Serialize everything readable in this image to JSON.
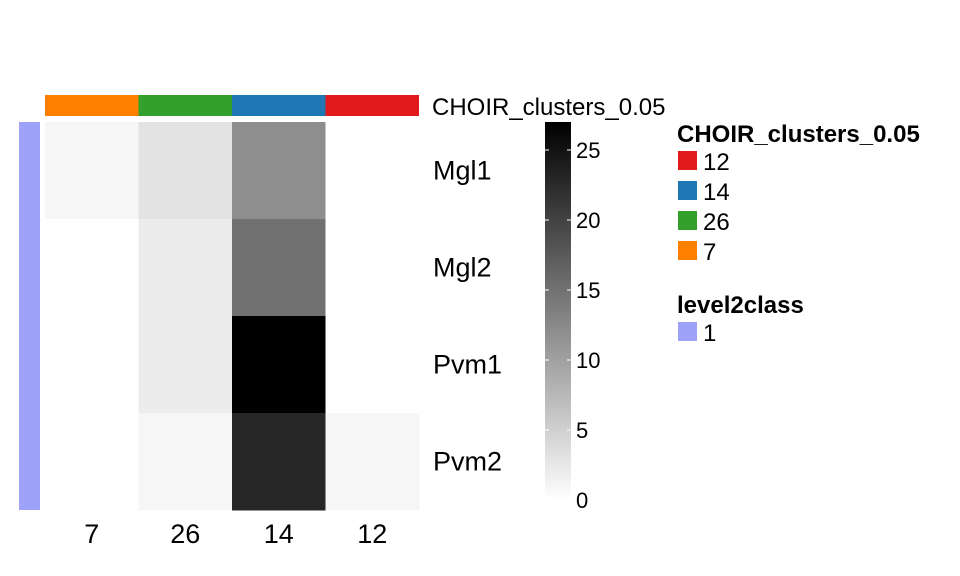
{
  "chart_data": {
    "type": "heatmap",
    "title": "",
    "columns": [
      "7",
      "26",
      "14",
      "12"
    ],
    "rows": [
      "Mgl1",
      "Mgl2",
      "Pvm1",
      "Pvm2"
    ],
    "values": [
      [
        1,
        3,
        12,
        0
      ],
      [
        0,
        2,
        15,
        0
      ],
      [
        0,
        2,
        27,
        0
      ],
      [
        0,
        1,
        23,
        1
      ]
    ],
    "colorbar": {
      "min": 0,
      "max": 27,
      "ticks": [
        0,
        5,
        10,
        15,
        20,
        25
      ],
      "low_color": "#ffffff",
      "high_color": "#000000"
    },
    "column_annotation": {
      "name": "CHOIR_clusters_0.05",
      "values": [
        "7",
        "26",
        "14",
        "12"
      ]
    },
    "row_annotation": {
      "name": "level2class",
      "values": [
        "1",
        "1",
        "1",
        "1"
      ]
    },
    "legends": [
      {
        "title": "CHOIR_clusters_0.05",
        "items": [
          {
            "label": "12",
            "color": "#e31a1c"
          },
          {
            "label": "14",
            "color": "#1f78b4"
          },
          {
            "label": "26",
            "color": "#33a02c"
          },
          {
            "label": "7",
            "color": "#ff7f00"
          }
        ]
      },
      {
        "title": "level2class",
        "items": [
          {
            "label": "1",
            "color": "#9ea2f8"
          }
        ]
      }
    ],
    "grid": false
  }
}
